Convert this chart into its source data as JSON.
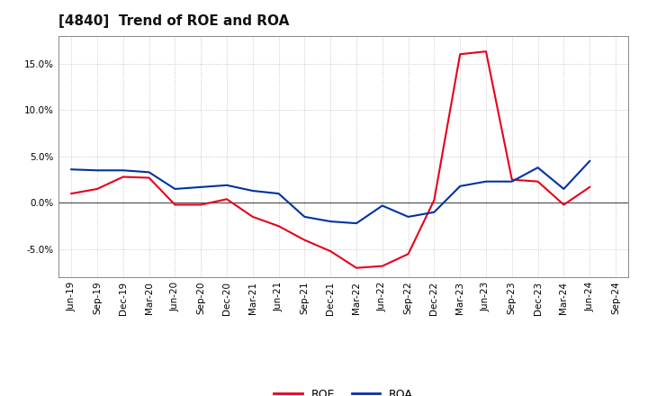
{
  "title": "[4840]  Trend of ROE and ROA",
  "x_labels": [
    "Jun-19",
    "Sep-19",
    "Dec-19",
    "Mar-20",
    "Jun-20",
    "Sep-20",
    "Dec-20",
    "Mar-21",
    "Jun-21",
    "Sep-21",
    "Dec-21",
    "Mar-22",
    "Jun-22",
    "Sep-22",
    "Dec-22",
    "Mar-23",
    "Jun-23",
    "Sep-23",
    "Dec-23",
    "Mar-24",
    "Jun-24",
    "Sep-24"
  ],
  "roe": [
    1.0,
    1.5,
    2.8,
    2.7,
    -0.2,
    -0.2,
    0.4,
    -1.5,
    -2.5,
    -4.0,
    -5.2,
    -7.0,
    -6.8,
    -5.5,
    0.3,
    16.0,
    16.3,
    2.5,
    2.3,
    -0.2,
    1.7,
    null
  ],
  "roa": [
    3.6,
    3.5,
    3.5,
    3.3,
    1.5,
    1.7,
    1.9,
    1.3,
    1.0,
    -1.5,
    -2.0,
    -2.2,
    -0.3,
    -1.5,
    -1.0,
    1.8,
    2.3,
    2.3,
    3.8,
    1.5,
    4.5,
    null
  ],
  "ylim": [
    -8.0,
    18.0
  ],
  "yticks": [
    -5.0,
    0.0,
    5.0,
    10.0,
    15.0
  ],
  "roe_color": "#e8001c",
  "roa_color": "#0032a0",
  "background_color": "#ffffff",
  "grid_color": "#bbbbbb",
  "zero_line_color": "#555555",
  "title_fontsize": 11,
  "tick_fontsize": 7.5,
  "legend_fontsize": 9
}
